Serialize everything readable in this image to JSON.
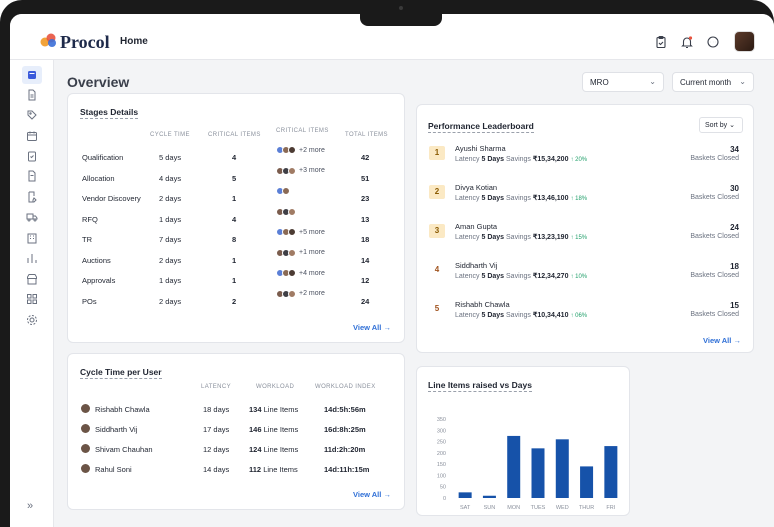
{
  "app": {
    "brand": "Procol",
    "nav_home": "Home"
  },
  "page": {
    "title": "Overview"
  },
  "filters": {
    "category": "MRO",
    "period": "Current month"
  },
  "stages": {
    "title": "Stages Details",
    "headers": {
      "cycle": "CYCLE TIME",
      "critical": "CRITICAL ITEMS",
      "critical2": "CRITICAL ITEMS",
      "total": "TOTAL ITEMS"
    },
    "rows": [
      {
        "stage": "Qualification",
        "cycle": "5 days",
        "critical": "4",
        "more": "+2 more",
        "total": "42",
        "chips": 3
      },
      {
        "stage": "Allocation",
        "cycle": "4 days",
        "critical": "5",
        "more": "+3 more",
        "total": "51",
        "chips": 3
      },
      {
        "stage": "Vendor Discovery",
        "cycle": "2 days",
        "critical": "1",
        "more": "",
        "total": "23",
        "chips": 2
      },
      {
        "stage": "RFQ",
        "cycle": "1 days",
        "critical": "4",
        "more": "",
        "total": "13",
        "chips": 3
      },
      {
        "stage": "TR",
        "cycle": "7 days",
        "critical": "8",
        "more": "+5 more",
        "total": "18",
        "chips": 3
      },
      {
        "stage": "Auctions",
        "cycle": "2 days",
        "critical": "1",
        "more": "+1 more",
        "total": "14",
        "chips": 3
      },
      {
        "stage": "Approvals",
        "cycle": "1 days",
        "critical": "1",
        "more": "+4 more",
        "total": "12",
        "chips": 3
      },
      {
        "stage": "POs",
        "cycle": "2 days",
        "critical": "2",
        "more": "+2 more",
        "total": "24",
        "chips": 3
      }
    ],
    "view_all": "View All"
  },
  "leaderboard": {
    "title": "Performance Leaderboard",
    "sort": "Sort by",
    "entries": [
      {
        "rank": "1",
        "name": "Ayushi Sharma",
        "latency": "5 Days",
        "savings": "₹15,34,200",
        "pct": "↑ 20%",
        "count": "34",
        "caption": "Baskets Closed"
      },
      {
        "rank": "2",
        "name": "Divya Kotian",
        "latency": "5 Days",
        "savings": "₹13,46,100",
        "pct": "↑ 18%",
        "count": "30",
        "caption": "Baskets Closed"
      },
      {
        "rank": "3",
        "name": "Aman Gupta",
        "latency": "5 Days",
        "savings": "₹13,23,190",
        "pct": "↑ 15%",
        "count": "24",
        "caption": "Baskets Closed"
      },
      {
        "rank": "4",
        "name": "Siddharth Vij",
        "latency": "5 Days",
        "savings": "₹12,34,270",
        "pct": "↑ 10%",
        "count": "18",
        "caption": "Baskets Closed"
      },
      {
        "rank": "5",
        "name": "Rishabh Chawla",
        "latency": "5 Days",
        "savings": "₹10,34,410",
        "pct": "↑ 06%",
        "count": "15",
        "caption": "Baskets Closed"
      }
    ],
    "latency_label": "Latency",
    "savings_label": "Savings",
    "view_all": "View All"
  },
  "cycle_user": {
    "title": "Cycle Time per User",
    "headers": {
      "latency": "LATENCY",
      "workload": "WORKLOAD",
      "index": "WORKLOAD INDEX"
    },
    "rows": [
      {
        "name": "Rishabh Chawla",
        "latency": "18 days",
        "items": "134",
        "unit": "Line Items",
        "index": "14d:5h:56m"
      },
      {
        "name": "Siddharth Vij",
        "latency": "17 days",
        "items": "146",
        "unit": "Line Items",
        "index": "16d:8h:25m"
      },
      {
        "name": "Shivam Chauhan",
        "latency": "12 days",
        "items": "124",
        "unit": "Line Items",
        "index": "11d:2h:20m"
      },
      {
        "name": "Rahul Soni",
        "latency": "14 days",
        "items": "112",
        "unit": "Line Items",
        "index": "14d:11h:15m"
      }
    ],
    "view_all": "View All"
  },
  "chart_data": {
    "type": "bar",
    "title": "Line Items raised vs Days",
    "categories": [
      "SAT",
      "SUN",
      "MON",
      "TUES",
      "WED",
      "THUR",
      "FRI"
    ],
    "values": [
      25,
      10,
      275,
      220,
      260,
      140,
      230
    ],
    "ylim": [
      0,
      350
    ],
    "yticks": [
      0,
      50,
      100,
      150,
      200,
      250,
      300,
      350
    ],
    "color": "#1652a9",
    "grid": false
  }
}
